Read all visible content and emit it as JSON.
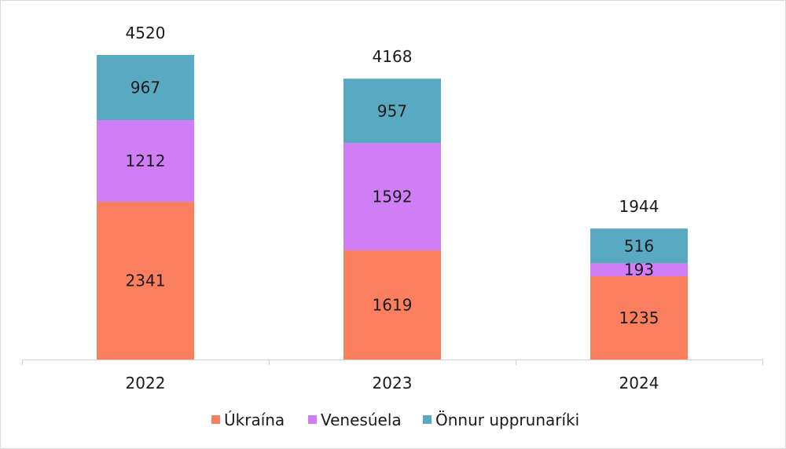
{
  "chart_data": {
    "type": "bar",
    "stacked": true,
    "categories": [
      "2022",
      "2023",
      "2024"
    ],
    "series": [
      {
        "name": "Úkraína",
        "color": "#fa7f5e",
        "values": [
          2341,
          1619,
          1235
        ]
      },
      {
        "name": "Venesúela",
        "color": "#cf7ef5",
        "values": [
          1212,
          1592,
          193
        ]
      },
      {
        "name": "Önnur upprunaríki",
        "color": "#5aa9c2",
        "values": [
          967,
          957,
          516
        ]
      }
    ],
    "totals": [
      4520,
      4168,
      1944
    ],
    "legend_position": "bottom",
    "grid": false
  }
}
